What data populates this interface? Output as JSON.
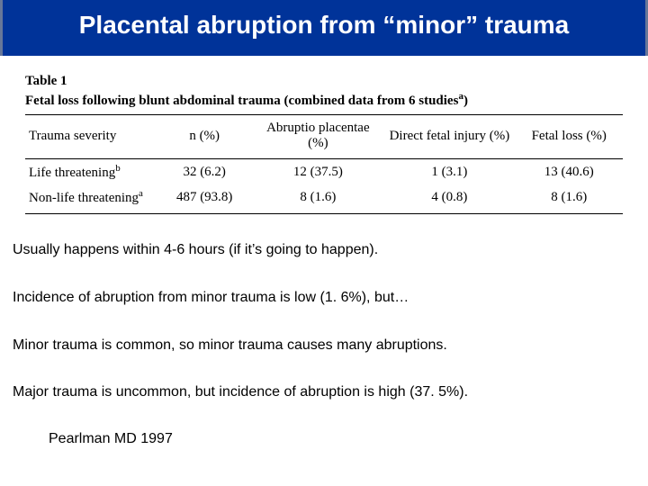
{
  "title": "Placental abruption from “minor” trauma",
  "table": {
    "label": "Table 1",
    "caption_pre": "Fetal loss following blunt abdominal trauma (combined data from 6 studies",
    "caption_sup": "a",
    "caption_post": ")",
    "headers": [
      "Trauma severity",
      "n (%)",
      "Abruptio placentae (%)",
      "Direct fetal injury (%)",
      "Fetal loss (%)"
    ],
    "rows": [
      {
        "label": "Life threatening",
        "sup": "b",
        "cells": [
          "32 (6.2)",
          "12 (37.5)",
          "1 (3.1)",
          "13 (40.6)"
        ]
      },
      {
        "label": "Non-life threatening",
        "sup": "a",
        "cells": [
          "487 (93.8)",
          "8 (1.6)",
          "4 (0.8)",
          "8 (1.6)"
        ]
      }
    ]
  },
  "bullets": [
    "Usually happens within 4-6 hours (if it’s going to happen).",
    "Incidence of abruption from minor trauma is low (1. 6%), but…",
    "Minor trauma is common, so minor trauma causes many abruptions.",
    "Major trauma is uncommon, but incidence of abruption is high (37. 5%)."
  ],
  "citation": "Pearlman MD 1997",
  "colors": {
    "title_bg": "#003399",
    "title_text": "#ffffff",
    "body_bg": "#ffffff"
  }
}
